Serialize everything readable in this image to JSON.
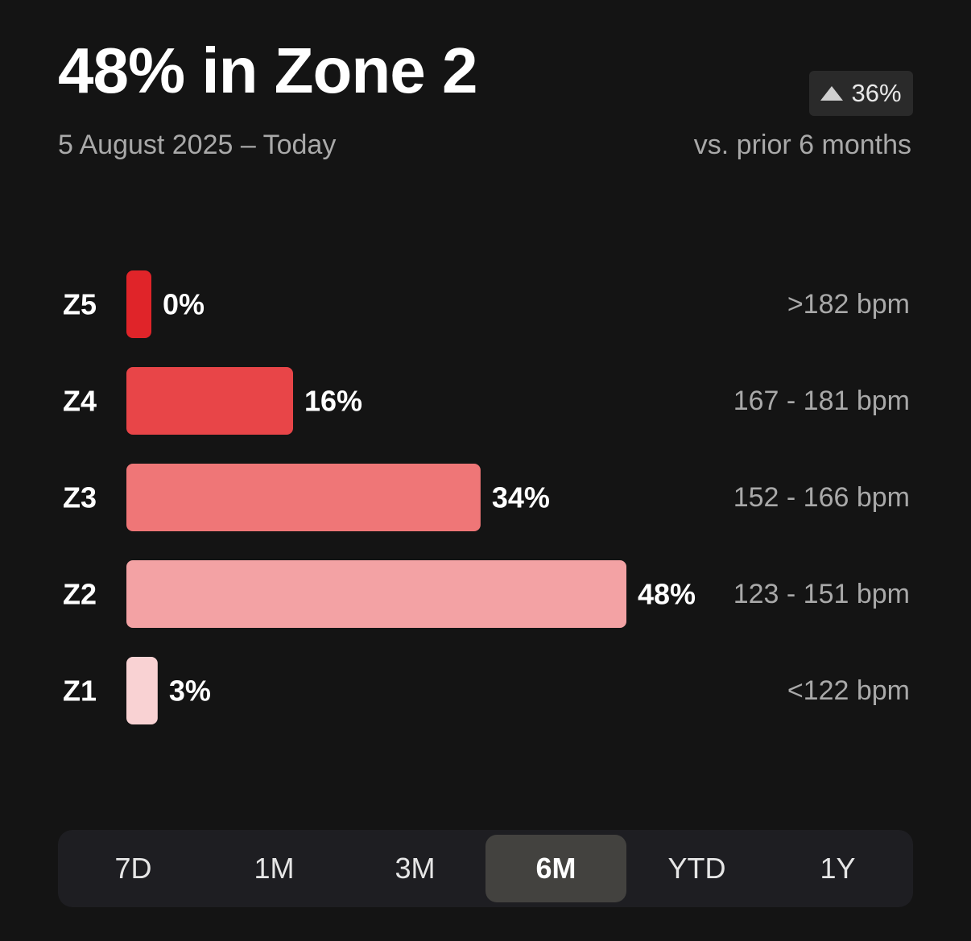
{
  "header": {
    "title": "48% in Zone 2",
    "date_range": "5 August 2025 – Today",
    "change_value": "36%",
    "change_direction_icon": "triangle-up-icon",
    "comparison": "vs. prior 6 months"
  },
  "chart_data": {
    "type": "bar",
    "orientation": "horizontal",
    "title": "48% in Zone 2",
    "categories": [
      "Z5",
      "Z4",
      "Z3",
      "Z2",
      "Z1"
    ],
    "values": [
      0,
      16,
      34,
      48,
      3
    ],
    "value_labels": [
      "0%",
      "16%",
      "34%",
      "48%",
      "3%"
    ],
    "ranges": [
      ">182 bpm",
      "167 - 181 bpm",
      "152 - 166 bpm",
      "123 - 151 bpm",
      "<122 bpm"
    ],
    "colors": [
      "#e02429",
      "#e84548",
      "#ef7677",
      "#f3a2a4",
      "#f9d2d3"
    ],
    "xlim": [
      0,
      48
    ],
    "unit": "%"
  },
  "range_tabs": {
    "items": [
      "7D",
      "1M",
      "3M",
      "6M",
      "YTD",
      "1Y"
    ],
    "selected": "6M"
  }
}
